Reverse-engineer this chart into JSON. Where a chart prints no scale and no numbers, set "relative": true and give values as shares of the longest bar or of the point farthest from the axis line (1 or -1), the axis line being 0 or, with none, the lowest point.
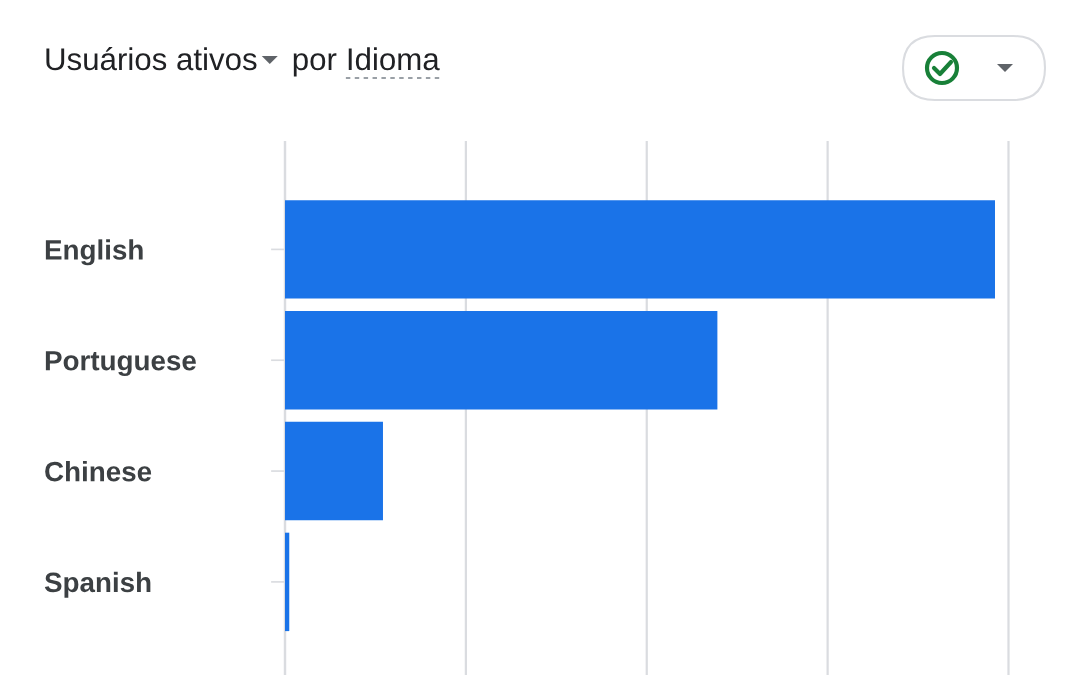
{
  "chart_data": {
    "type": "bar",
    "orientation": "horizontal",
    "title": "Usuários ativos por Idioma",
    "categories": [
      "English",
      "Portuguese",
      "Chinese",
      "Spanish"
    ],
    "values": [
      1,
      0.609,
      0.138,
      0.006
    ],
    "color": "#1a73e8",
    "relative": true,
    "grid": "x"
  }
}
